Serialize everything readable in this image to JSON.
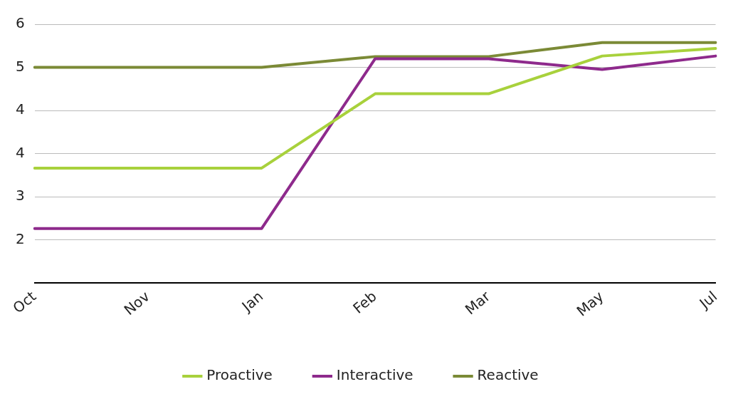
{
  "chart_data": {
    "type": "line",
    "categories": [
      "Oct",
      "Nov",
      "Jan",
      "Feb",
      "Mar",
      "May",
      "Jul"
    ],
    "series": [
      {
        "name": "Proactive",
        "color": "#a8d13c",
        "values": [
          3.33,
          3.33,
          3.33,
          4.71,
          4.71,
          5.41,
          5.55
        ]
      },
      {
        "name": "Interactive",
        "color": "#8e2a8c",
        "values": [
          2.21,
          2.21,
          2.21,
          5.36,
          5.36,
          5.16,
          5.41
        ]
      },
      {
        "name": "Reactive",
        "color": "#7b8a36",
        "values": [
          5.2,
          5.2,
          5.2,
          5.4,
          5.4,
          5.66,
          5.66
        ]
      }
    ],
    "ylim": [
      1.2,
      6
    ],
    "yticks": [
      {
        "value": 1.2,
        "label": null
      },
      {
        "value": 2,
        "label": "2"
      },
      {
        "value": 2.8,
        "label": "3"
      },
      {
        "value": 3.6,
        "label": "4"
      },
      {
        "value": 4.4,
        "label": "4"
      },
      {
        "value": 5.2,
        "label": "5"
      },
      6
    ],
    "grid": "y",
    "legend": "bottom",
    "marker": "none",
    "line_style": "solid"
  }
}
